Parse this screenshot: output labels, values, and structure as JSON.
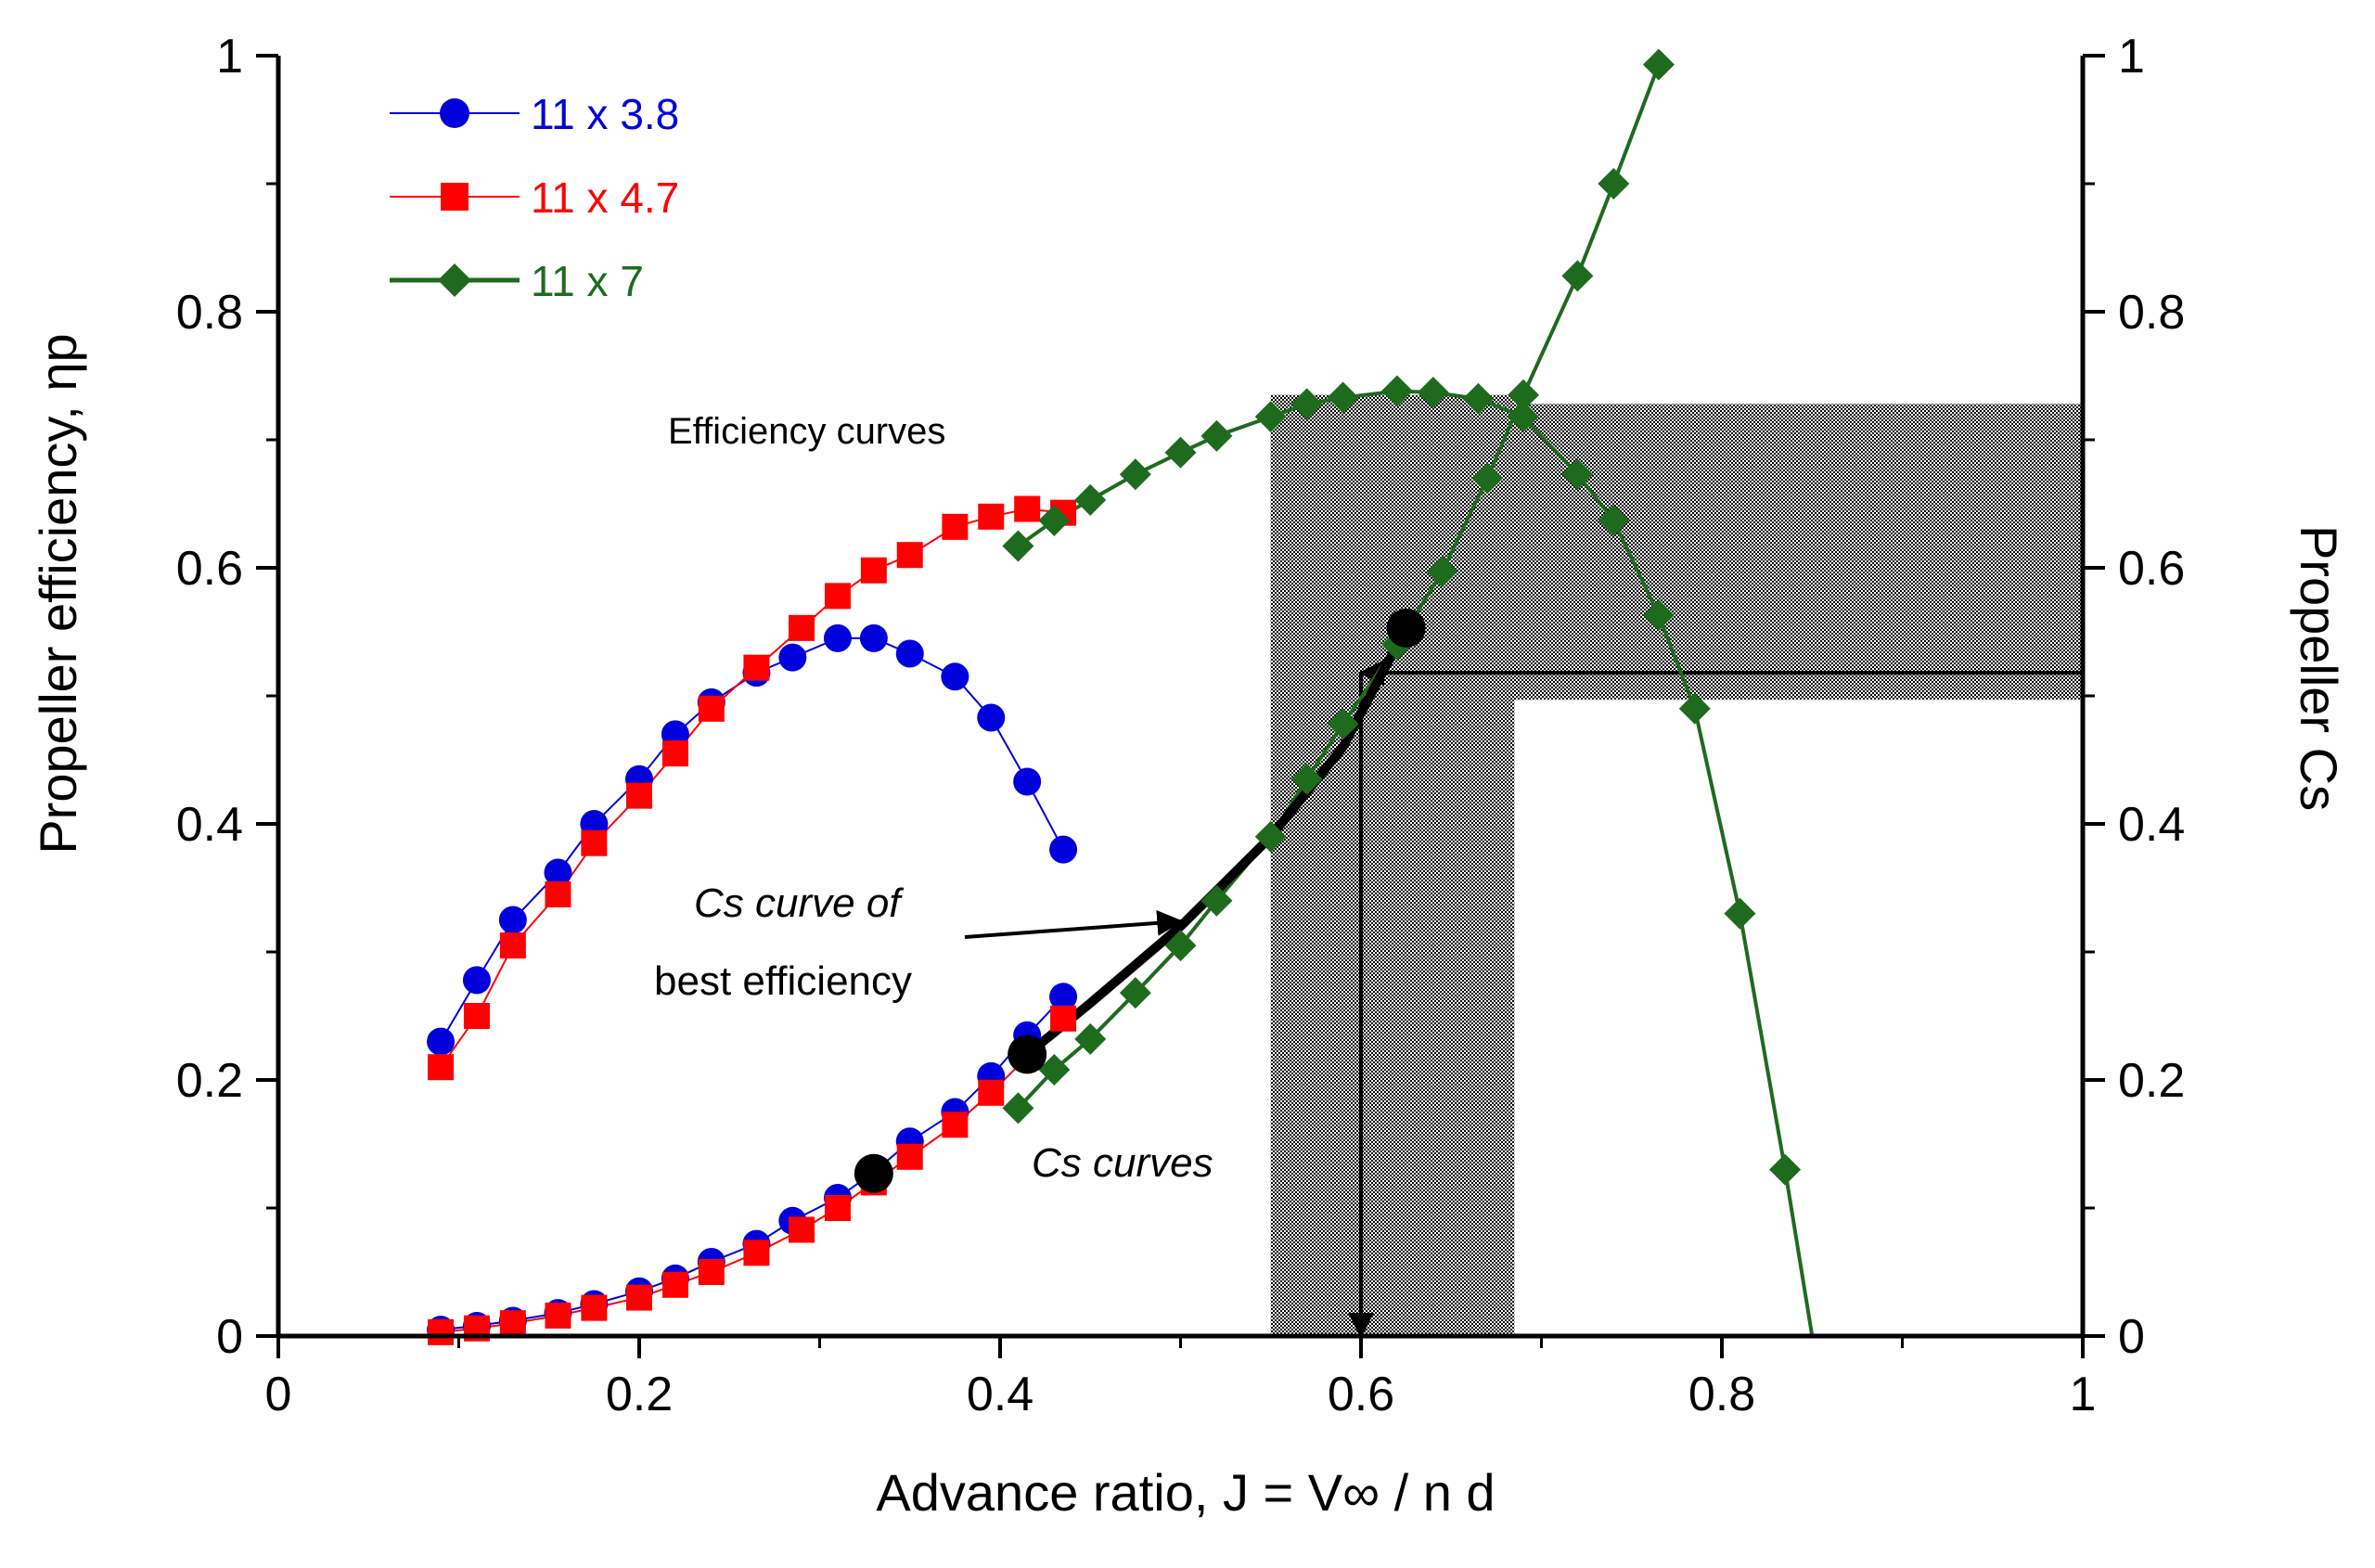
{
  "chart_data": {
    "type": "scatter",
    "xlabel": "Advance ratio, J = V∞ / n d",
    "ylabel_left": "Propeller efficiency, ηp",
    "ylabel_right": "Propeller Cs",
    "xlim": [
      0,
      1
    ],
    "ylim_left": [
      0,
      1
    ],
    "ylim_right": [
      0,
      1
    ],
    "x_ticks": [
      "0",
      "0.2",
      "0.4",
      "0.6",
      "0.8",
      "1"
    ],
    "y_ticks_left": [
      "0",
      "0.2",
      "0.4",
      "0.6",
      "0.8",
      "1"
    ],
    "y_ticks_right": [
      "0",
      "0.2",
      "0.4",
      "0.6",
      "0.8",
      "1"
    ],
    "legend_position": "top-left",
    "legend": [
      {
        "label": "11 x 3.8",
        "color": "#0000dd",
        "marker": "circle"
      },
      {
        "label": "11 x 4.7",
        "color": "#ff0000",
        "marker": "square"
      },
      {
        "label": "11 x 7",
        "color": "#1e6b1e",
        "marker": "diamond"
      }
    ],
    "annotations": {
      "efficiency_curves": "Efficiency curves",
      "cs_curve_best_line1": "Cs curve of",
      "cs_curve_best_line2": "best efficiency",
      "cs_curves": "Cs curves"
    },
    "series": [
      {
        "name": "11 x 3.8",
        "kind": "efficiency",
        "color": "#0000dd",
        "marker": "circle",
        "points": [
          [
            0.09,
            0.23
          ],
          [
            0.11,
            0.278
          ],
          [
            0.13,
            0.325
          ],
          [
            0.155,
            0.362
          ],
          [
            0.175,
            0.4
          ],
          [
            0.2,
            0.435
          ],
          [
            0.22,
            0.47
          ],
          [
            0.24,
            0.495
          ],
          [
            0.265,
            0.518
          ],
          [
            0.285,
            0.53
          ],
          [
            0.31,
            0.545
          ],
          [
            0.33,
            0.545
          ],
          [
            0.35,
            0.533
          ],
          [
            0.375,
            0.515
          ],
          [
            0.395,
            0.483
          ],
          [
            0.415,
            0.433
          ],
          [
            0.435,
            0.38
          ]
        ]
      },
      {
        "name": "11 x 4.7",
        "kind": "efficiency",
        "color": "#ff0000",
        "marker": "square",
        "points": [
          [
            0.09,
            0.21
          ],
          [
            0.11,
            0.25
          ],
          [
            0.13,
            0.305
          ],
          [
            0.155,
            0.345
          ],
          [
            0.175,
            0.385
          ],
          [
            0.2,
            0.422
          ],
          [
            0.22,
            0.455
          ],
          [
            0.24,
            0.49
          ],
          [
            0.265,
            0.522
          ],
          [
            0.29,
            0.553
          ],
          [
            0.31,
            0.578
          ],
          [
            0.33,
            0.598
          ],
          [
            0.35,
            0.61
          ],
          [
            0.375,
            0.632
          ],
          [
            0.395,
            0.64
          ],
          [
            0.415,
            0.646
          ],
          [
            0.435,
            0.643
          ]
        ]
      },
      {
        "name": "11 x 7",
        "kind": "efficiency",
        "color": "#1e6b1e",
        "marker": "diamond",
        "points": [
          [
            0.41,
            0.617
          ],
          [
            0.43,
            0.637
          ],
          [
            0.45,
            0.653
          ],
          [
            0.475,
            0.673
          ],
          [
            0.5,
            0.69
          ],
          [
            0.52,
            0.703
          ],
          [
            0.55,
            0.718
          ],
          [
            0.57,
            0.728
          ],
          [
            0.59,
            0.733
          ],
          [
            0.62,
            0.738
          ],
          [
            0.64,
            0.737
          ],
          [
            0.665,
            0.732
          ],
          [
            0.69,
            0.718
          ],
          [
            0.72,
            0.673
          ],
          [
            0.74,
            0.637
          ],
          [
            0.765,
            0.563
          ],
          [
            0.785,
            0.49
          ],
          [
            0.81,
            0.33
          ],
          [
            0.835,
            0.13
          ],
          [
            0.85,
            0
          ]
        ]
      },
      {
        "name": "11 x 3.8",
        "kind": "cs",
        "color": "#0000dd",
        "marker": "circle",
        "points": [
          [
            0.09,
            0.005
          ],
          [
            0.11,
            0.008
          ],
          [
            0.13,
            0.012
          ],
          [
            0.155,
            0.018
          ],
          [
            0.175,
            0.025
          ],
          [
            0.2,
            0.035
          ],
          [
            0.22,
            0.045
          ],
          [
            0.24,
            0.058
          ],
          [
            0.265,
            0.072
          ],
          [
            0.285,
            0.09
          ],
          [
            0.31,
            0.108
          ],
          [
            0.33,
            0.128
          ],
          [
            0.35,
            0.152
          ],
          [
            0.375,
            0.175
          ],
          [
            0.395,
            0.203
          ],
          [
            0.415,
            0.235
          ],
          [
            0.435,
            0.265
          ]
        ]
      },
      {
        "name": "11 x 4.7",
        "kind": "cs",
        "color": "#ff0000",
        "marker": "square",
        "points": [
          [
            0.09,
            0.003
          ],
          [
            0.11,
            0.006
          ],
          [
            0.13,
            0.01
          ],
          [
            0.155,
            0.016
          ],
          [
            0.175,
            0.022
          ],
          [
            0.2,
            0.03
          ],
          [
            0.22,
            0.04
          ],
          [
            0.24,
            0.05
          ],
          [
            0.265,
            0.065
          ],
          [
            0.29,
            0.083
          ],
          [
            0.31,
            0.1
          ],
          [
            0.33,
            0.12
          ],
          [
            0.35,
            0.14
          ],
          [
            0.375,
            0.165
          ],
          [
            0.395,
            0.19
          ],
          [
            0.415,
            0.218
          ],
          [
            0.435,
            0.248
          ]
        ]
      },
      {
        "name": "11 x 7",
        "kind": "cs",
        "color": "#1e6b1e",
        "marker": "diamond",
        "points": [
          [
            0.41,
            0.178
          ],
          [
            0.43,
            0.208
          ],
          [
            0.45,
            0.232
          ],
          [
            0.475,
            0.268
          ],
          [
            0.5,
            0.305
          ],
          [
            0.52,
            0.34
          ],
          [
            0.55,
            0.39
          ],
          [
            0.57,
            0.435
          ],
          [
            0.59,
            0.478
          ],
          [
            0.62,
            0.54
          ],
          [
            0.645,
            0.597
          ],
          [
            0.67,
            0.67
          ],
          [
            0.69,
            0.735
          ],
          [
            0.72,
            0.828
          ],
          [
            0.74,
            0.9
          ],
          [
            0.765,
            0.993
          ]
        ]
      }
    ],
    "best_efficiency_curve": [
      [
        0.415,
        0.22
      ],
      [
        0.45,
        0.26
      ],
      [
        0.5,
        0.32
      ],
      [
        0.55,
        0.39
      ],
      [
        0.59,
        0.46
      ],
      [
        0.625,
        0.553
      ]
    ],
    "highlight_points": [
      [
        0.33,
        0.127
      ],
      [
        0.415,
        0.22
      ],
      [
        0.625,
        0.553
      ]
    ],
    "shaded_regions": [
      {
        "x": [
          0.55,
          0.685
        ],
        "y": [
          0,
          0.735
        ]
      },
      {
        "x": [
          0.55,
          1.0
        ],
        "y": [
          0.497,
          0.728
        ]
      }
    ],
    "arrows": [
      {
        "from": [
          1.0,
          0.518
        ],
        "to": [
          0.6,
          0.518
        ]
      },
      {
        "from": [
          0.6,
          0.518
        ],
        "to": [
          0.6,
          0.0
        ]
      }
    ],
    "pointer_arrow": {
      "from": [
        0.38,
        0.31
      ],
      "to": [
        0.5,
        0.325
      ]
    }
  }
}
